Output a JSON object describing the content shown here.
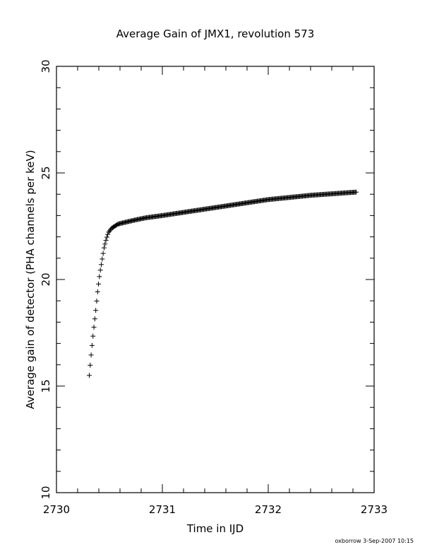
{
  "chart_data": {
    "type": "scatter",
    "title": "Average Gain of JMX1, revolution 573",
    "xlabel": "Time in IJD",
    "ylabel": "Average gain of detector (PHA channels per keV)",
    "xlim": [
      2730,
      2733
    ],
    "ylim": [
      10,
      30
    ],
    "x_ticks": [
      2730,
      2731,
      2732,
      2733
    ],
    "y_ticks": [
      10,
      15,
      20,
      25,
      30
    ],
    "x_tick_labels": [
      "2730",
      "2731",
      "2732",
      "2733"
    ],
    "y_tick_labels": [
      "10",
      "15",
      "20",
      "25",
      "30"
    ],
    "marker": "+",
    "grid": false,
    "x_start": 2730.31,
    "x_end": 2732.83,
    "point_count": 290,
    "series": [
      {
        "x": [
          2730.31,
          2730.33,
          2730.35,
          2730.37,
          2730.39,
          2730.41,
          2730.43,
          2730.45,
          2730.47,
          2730.49,
          2730.52,
          2730.55,
          2730.58,
          2730.62,
          2730.68,
          2730.75,
          2730.85,
          2731.0,
          2731.2,
          2731.4,
          2731.6,
          2731.8,
          2732.0,
          2732.2,
          2732.4,
          2732.6,
          2732.83
        ],
        "y": [
          15.5,
          16.6,
          17.6,
          18.5,
          19.5,
          20.3,
          20.9,
          21.5,
          21.9,
          22.2,
          22.4,
          22.5,
          22.6,
          22.65,
          22.72,
          22.8,
          22.9,
          23.0,
          23.15,
          23.3,
          23.45,
          23.6,
          23.75,
          23.85,
          23.95,
          24.02,
          24.1
        ]
      }
    ]
  },
  "footer": {
    "stamp": "oxborrow  3-Sep-2007 10:15"
  },
  "colors": {
    "ink": "#000000",
    "background": "#ffffff"
  }
}
